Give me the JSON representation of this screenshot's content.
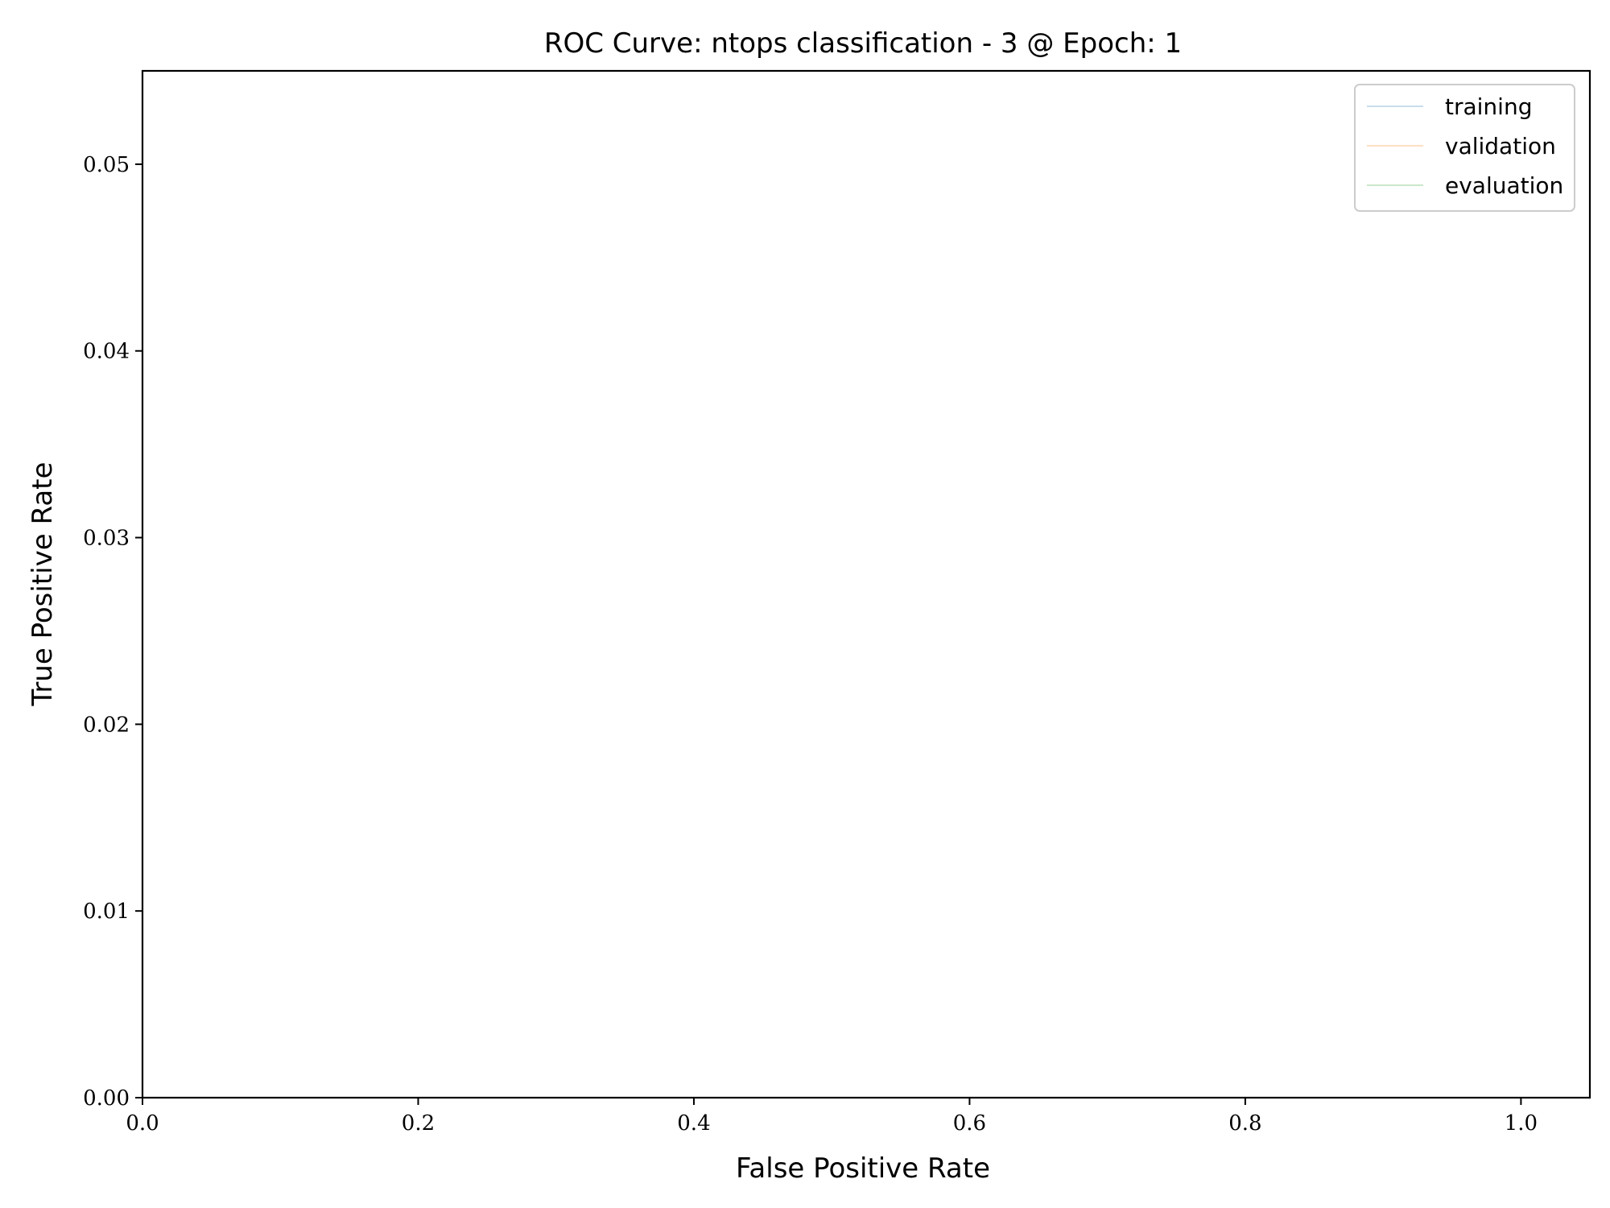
{
  "chart_data": {
    "type": "line",
    "title": "ROC Curve: ntops classification - 3 @ Epoch: 1",
    "xlabel": "False Positive Rate",
    "ylabel": "True Positive Rate",
    "xlim": [
      0,
      1.05
    ],
    "ylim": [
      0,
      0.055
    ],
    "xticks": [
      0.0,
      0.2,
      0.4,
      0.6,
      0.8,
      1.0
    ],
    "xtick_labels": [
      "0.0",
      "0.2",
      "0.4",
      "0.6",
      "0.8",
      "1.0"
    ],
    "yticks": [
      0.0,
      0.01,
      0.02,
      0.03,
      0.04,
      0.05
    ],
    "ytick_labels": [
      "0.00",
      "0.01",
      "0.02",
      "0.03",
      "0.04",
      "0.05"
    ],
    "grid": false,
    "legend_position": "top-right",
    "series": [
      {
        "name": "training",
        "color": "#1f77b4",
        "x": [],
        "y": []
      },
      {
        "name": "validation",
        "color": "#ff7f0e",
        "x": [],
        "y": []
      },
      {
        "name": "evaluation",
        "color": "#2ca02c",
        "x": [],
        "y": []
      }
    ]
  }
}
